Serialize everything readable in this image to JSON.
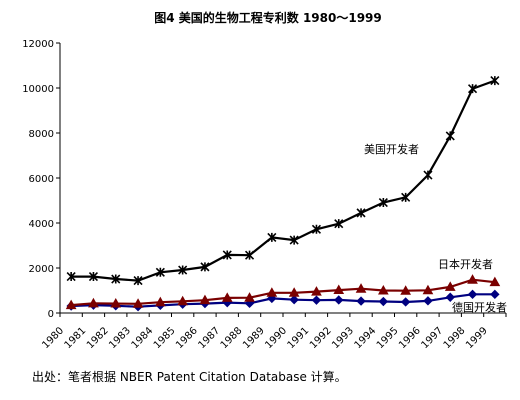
{
  "chart_data": {
    "type": "line",
    "title": "图4  美国的生物工程专利数 1980～1999",
    "xlabel": "",
    "ylabel": "",
    "x": [
      "1980",
      "1981",
      "1982",
      "1983",
      "1984",
      "1985",
      "1986",
      "1987",
      "1988",
      "1989",
      "1990",
      "1991",
      "1992",
      "1993",
      "1994",
      "1995",
      "1996",
      "1997",
      "1998",
      "1999"
    ],
    "ylim": [
      0,
      12000
    ],
    "yticks": [
      "0",
      "2000",
      "4000",
      "6000",
      "8000",
      "10000",
      "12000"
    ],
    "grid": false,
    "legend": "none",
    "series": [
      {
        "name": "美国开发者",
        "color": "#000000",
        "marker": "asterisk",
        "values": [
          1620,
          1620,
          1510,
          1440,
          1810,
          1910,
          2050,
          2580,
          2570,
          3360,
          3240,
          3720,
          3970,
          4450,
          4910,
          5140,
          6130,
          7870,
          9970,
          10330
        ]
      },
      {
        "name": "日本开发者",
        "color": "#7a0000",
        "marker": "triangle",
        "values": [
          350,
          430,
          420,
          410,
          480,
          520,
          570,
          670,
          680,
          900,
          900,
          950,
          1020,
          1080,
          1000,
          990,
          1010,
          1160,
          1480,
          1370
        ]
      },
      {
        "name": "德国开发者",
        "color": "#000080",
        "marker": "diamond",
        "values": [
          310,
          350,
          320,
          280,
          340,
          390,
          420,
          460,
          430,
          650,
          590,
          570,
          580,
          530,
          510,
          490,
          540,
          700,
          830,
          830
        ]
      }
    ]
  },
  "source_note": "出处：笔者根据 NBER Patent Citation Database 计算。"
}
